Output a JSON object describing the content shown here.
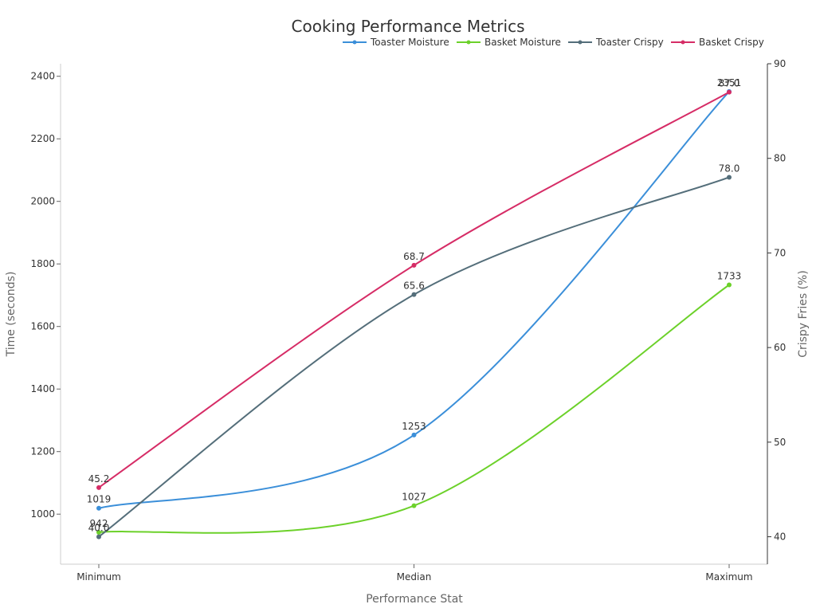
{
  "chart_data": {
    "type": "line",
    "title": "Cooking Performance Metrics",
    "xlabel": "Performance Stat",
    "ylabel": "Time (seconds)",
    "y2label": "Crispy Fries (%)",
    "categories": [
      "Minimum",
      "Median",
      "Maximum"
    ],
    "ylim": [
      840,
      2440
    ],
    "y2lim": [
      37.1,
      90
    ],
    "yticks": [
      1000,
      1200,
      1400,
      1600,
      1800,
      2000,
      2200,
      2400
    ],
    "y2ticks": [
      40,
      50,
      60,
      70,
      80,
      90
    ],
    "series": [
      {
        "name": "Toaster Moisture",
        "axis": "left",
        "color": "#3b8fd9",
        "values": [
          1019,
          1253,
          2351
        ],
        "labels": [
          "1019",
          "1253",
          "2351"
        ]
      },
      {
        "name": "Basket Moisture",
        "axis": "left",
        "color": "#6cd12a",
        "values": [
          942,
          1027,
          1733
        ],
        "labels": [
          "942",
          "1027",
          "1733"
        ]
      },
      {
        "name": "Toaster Crispy",
        "axis": "right",
        "color": "#546e7a",
        "values": [
          40.0,
          65.6,
          78.0
        ],
        "labels": [
          "40.0",
          "65.6",
          "78.0"
        ]
      },
      {
        "name": "Basket Crispy",
        "axis": "right",
        "color": "#d62c66",
        "values": [
          45.2,
          68.7,
          87.0
        ],
        "labels": [
          "45.2",
          "68.7",
          "87.0"
        ]
      }
    ]
  }
}
